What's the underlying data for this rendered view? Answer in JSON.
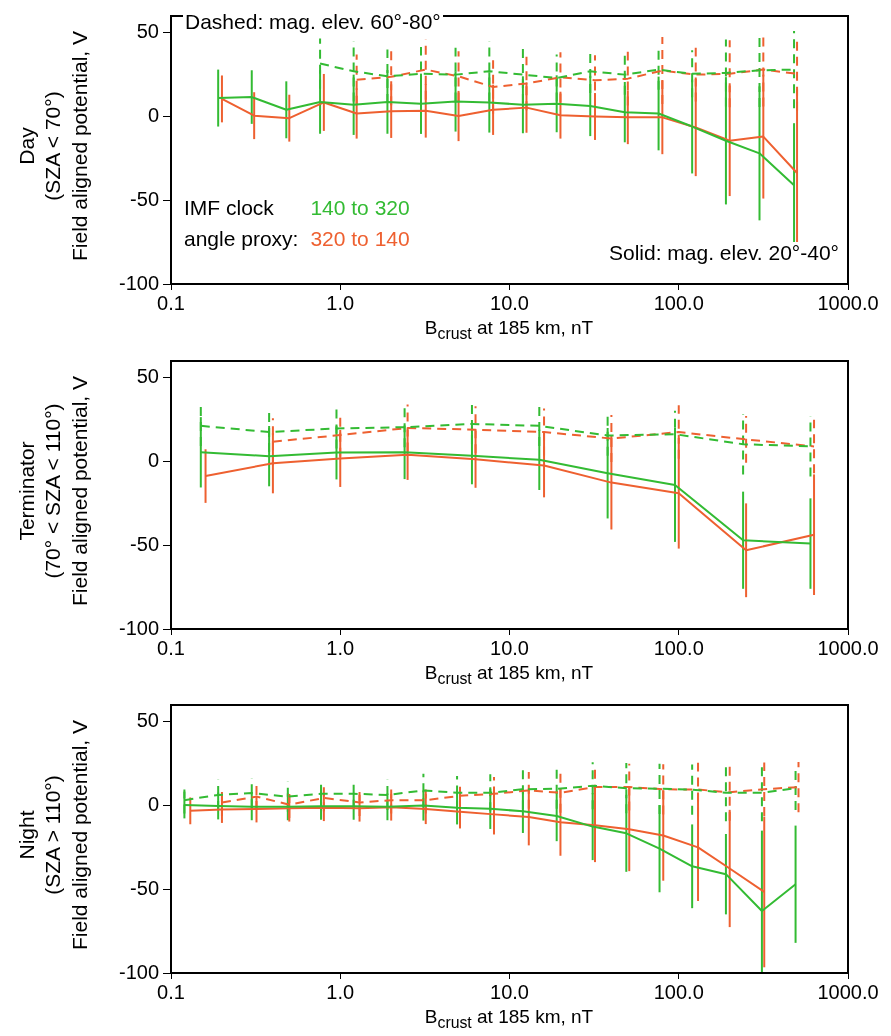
{
  "chart_data": [
    {
      "type": "line",
      "title": "Day",
      "subtitle": "(SZA < 70°)",
      "ylabel": "Field aligned potential, V",
      "xlabel": "B$_{crust}$ at 185 km, nT",
      "log": "x",
      "grid": false,
      "marker": "none",
      "legend": "bottom left",
      "legend_title": "IMF clock\nangle proxy:",
      "xlim": [
        0.1,
        1000
      ],
      "ylim": [
        -100,
        60
      ],
      "xticks": [
        {
          "value": 0.1,
          "label": "0.1"
        },
        {
          "value": 1,
          "label": "1.0"
        },
        {
          "value": 10,
          "label": "10.0"
        },
        {
          "value": 100,
          "label": "100.0"
        },
        {
          "value": 1000,
          "label": "1000.0"
        }
      ],
      "yticks": [
        -100,
        -50,
        0,
        50
      ],
      "annotations": [
        "Dashed: mag. elev. 60°-80°",
        "Solid: mag. elev. 20°-40°"
      ],
      "series": [
        {
          "name": "140 to 320",
          "color": "#33bb33",
          "line_style": "solid",
          "x": [
            0.19,
            0.3,
            0.48,
            0.76,
            1.2,
            1.9,
            3.0,
            4.8,
            7.6,
            12,
            19,
            30,
            48,
            76,
            120,
            190,
            300,
            480
          ],
          "values": [
            11,
            11.6,
            4,
            8.7,
            7,
            8.7,
            7.6,
            9,
            8.4,
            7,
            7.6,
            6.3,
            2.6,
            1.8,
            -6,
            -14.5,
            -22,
            -41
          ],
          "errors": [
            17,
            16,
            17,
            19,
            18,
            19,
            18,
            18,
            18,
            17,
            17,
            18,
            18,
            22,
            28,
            38,
            40,
            37
          ]
        },
        {
          "name": "320 to 140",
          "color": "#ee6030",
          "line_style": "solid",
          "x": [
            0.2,
            0.31,
            0.5,
            0.8,
            1.25,
            2.0,
            3.2,
            5.0,
            8.0,
            12.6,
            20,
            32,
            50,
            80,
            126,
            200,
            316,
            500
          ],
          "values": [
            10.5,
            0.5,
            -1,
            8.4,
            1.8,
            3.2,
            3.4,
            0.3,
            4,
            5.3,
            0.8,
            0,
            -0.5,
            -0.5,
            -6.6,
            -14.5,
            -12,
            -33.7
          ],
          "errors": [
            14,
            14,
            14,
            17,
            15,
            16,
            16,
            15,
            15,
            15,
            14,
            14,
            16,
            22,
            29,
            33,
            37,
            50
          ]
        },
        {
          "color": "#33bb33",
          "line_style": "dashed",
          "x": [
            0.76,
            1.2,
            1.9,
            3.0,
            4.8,
            7.6,
            12,
            19,
            30,
            48,
            76,
            120,
            190,
            300,
            480
          ],
          "values": [
            31.6,
            27,
            24,
            25.5,
            25,
            27,
            25,
            23,
            27,
            25,
            28,
            25.5,
            26,
            27.6,
            28
          ],
          "errors": [
            15,
            18,
            16,
            16,
            16,
            18,
            17,
            14,
            13,
            12,
            12,
            14,
            20,
            22,
            23
          ]
        },
        {
          "color": "#ee6030",
          "line_style": "dashed",
          "x": [
            1.25,
            2.0,
            3.2,
            5.0,
            8.0,
            12.6,
            20,
            32,
            50,
            80,
            126,
            200,
            316,
            500
          ],
          "values": [
            22,
            23.7,
            28,
            24,
            17.6,
            19.7,
            23.4,
            21.6,
            22.6,
            27.4,
            25,
            25.5,
            28,
            25.5
          ],
          "errors": [
            15,
            17,
            18,
            15,
            16,
            16,
            15,
            15,
            16,
            20,
            16,
            20,
            22,
            22
          ]
        }
      ]
    },
    {
      "type": "line",
      "title": "Terminator",
      "subtitle": "(70° < SZA < 110°)",
      "ylabel": "Field aligned potential, V",
      "xlabel": "B$_{crust}$ at 185 km, nT",
      "log": "x",
      "grid": false,
      "marker": "none",
      "xlim": [
        0.1,
        1000
      ],
      "ylim": [
        -100,
        60
      ],
      "xticks": [
        {
          "value": 0.1,
          "label": "0.1"
        },
        {
          "value": 1,
          "label": "1.0"
        },
        {
          "value": 10,
          "label": "10.0"
        },
        {
          "value": 100,
          "label": "100.0"
        },
        {
          "value": 1000,
          "label": "1000.0"
        }
      ],
      "yticks": [
        -100,
        -50,
        0,
        50
      ],
      "series": [
        {
          "color": "#33bb33",
          "line_style": "solid",
          "x": [
            0.15,
            0.38,
            0.95,
            2.4,
            6,
            15,
            38,
            95,
            240,
            600
          ],
          "values": [
            5.5,
            3.2,
            5.3,
            5.5,
            3.4,
            1,
            -7,
            -14,
            -47,
            -49
          ],
          "errors": [
            21,
            18,
            16,
            16,
            17,
            18,
            27,
            34,
            29,
            27
          ]
        },
        {
          "color": "#ee6030",
          "line_style": "solid",
          "x": [
            0.16,
            0.4,
            1.0,
            2.5,
            6.3,
            16,
            40,
            100,
            250,
            630
          ],
          "values": [
            -8.7,
            -1,
            1.8,
            4,
            1.3,
            -2.4,
            -12.6,
            -19,
            -53,
            -43.7
          ],
          "errors": [
            16,
            18,
            17,
            15,
            17,
            19,
            28,
            33,
            28,
            36
          ]
        },
        {
          "color": "#33bb33",
          "line_style": "dashed",
          "x": [
            0.15,
            0.38,
            0.95,
            2.4,
            6,
            15,
            38,
            95,
            240,
            600
          ],
          "values": [
            21.3,
            17.6,
            19.7,
            20.5,
            22.4,
            21.3,
            15.5,
            16.3,
            10.3,
            9
          ],
          "errors": [
            12,
            12,
            12,
            12,
            12,
            12,
            12,
            14,
            18,
            18
          ]
        },
        {
          "color": "#ee6030",
          "line_style": "dashed",
          "x": [
            0.4,
            1.0,
            2.5,
            6.3,
            16,
            40,
            100,
            250,
            630
          ],
          "values": [
            11.8,
            15.8,
            20,
            19,
            17.6,
            13.7,
            17.6,
            13.2,
            9
          ],
          "errors": [
            14,
            13,
            14,
            14,
            14,
            14,
            16,
            14,
            16
          ]
        }
      ]
    },
    {
      "type": "line",
      "title": "Night",
      "subtitle": "(SZA > 110°)",
      "ylabel": "Field aligned potential, V",
      "xlabel": "B$_{crust}$ at 185 km, nT",
      "log": "x",
      "grid": false,
      "marker": "none",
      "xlim": [
        0.1,
        1000
      ],
      "ylim": [
        -100,
        60
      ],
      "xticks": [
        {
          "value": 0.1,
          "label": "0.1"
        },
        {
          "value": 1,
          "label": "1.0"
        },
        {
          "value": 10,
          "label": "10.0"
        },
        {
          "value": 100,
          "label": "100.0"
        },
        {
          "value": 1000,
          "label": "1000.0"
        }
      ],
      "yticks": [
        -100,
        -50,
        0,
        50
      ],
      "series": [
        {
          "color": "#33bb33",
          "line_style": "solid",
          "x": [
            0.12,
            0.19,
            0.3,
            0.49,
            0.77,
            1.2,
            1.9,
            3.1,
            4.9,
            7.7,
            12,
            19,
            31,
            49,
            77,
            120,
            190,
            310,
            490
          ],
          "values": [
            0.3,
            -0.3,
            -0.8,
            -0.8,
            -0.5,
            -0.5,
            -0.8,
            0,
            -1.3,
            -2,
            -3.4,
            -6.3,
            -12.6,
            -16.6,
            -25.8,
            -36.3,
            -41,
            -63,
            -47
          ],
          "errors": [
            8,
            8,
            8,
            8,
            8,
            8,
            8,
            9,
            10,
            12,
            13,
            15,
            20,
            23,
            26,
            25,
            24,
            48,
            35
          ]
        },
        {
          "color": "#ee6030",
          "line_style": "solid",
          "x": [
            0.13,
            0.2,
            0.32,
            0.5,
            0.8,
            1.3,
            2.0,
            3.2,
            5.1,
            8.1,
            13,
            20,
            32,
            51,
            81,
            130,
            200,
            320
          ],
          "values": [
            -3.2,
            -2.4,
            -2.1,
            -1.6,
            -1.3,
            -1.6,
            -1,
            -2.1,
            -3.7,
            -5.3,
            -6.8,
            -10,
            -11.8,
            -14.2,
            -17.9,
            -25,
            -37.6,
            -51.6
          ],
          "errors": [
            8,
            8,
            8,
            8,
            8,
            8,
            8,
            9,
            10,
            12,
            17,
            20,
            22,
            25,
            27,
            32,
            35,
            45
          ]
        },
        {
          "color": "#33bb33",
          "line_style": "dashed",
          "x": [
            0.12,
            0.19,
            0.3,
            0.49,
            0.77,
            1.2,
            1.9,
            3.1,
            4.9,
            7.7,
            12,
            19,
            31,
            49,
            77,
            120,
            190,
            310,
            490
          ],
          "values": [
            3.2,
            6.3,
            7.4,
            5.3,
            7,
            7,
            6.3,
            9,
            7.6,
            7.6,
            9.7,
            10,
            11.8,
            10.3,
            10,
            9.5,
            7.6,
            7.6,
            10.3
          ],
          "errors": [
            8,
            9,
            9,
            9,
            9,
            9,
            9,
            10,
            10,
            11,
            12,
            12,
            14,
            15,
            15,
            15,
            17,
            17,
            13
          ]
        },
        {
          "color": "#ee6030",
          "line_style": "dashed",
          "x": [
            0.2,
            0.32,
            0.5,
            0.8,
            1.3,
            2.0,
            3.2,
            5.1,
            8.1,
            13,
            20,
            32,
            51,
            81,
            130,
            200,
            320,
            510
          ],
          "values": [
            1.8,
            5.3,
            0.5,
            4.5,
            1.8,
            3.2,
            3.2,
            5.8,
            7,
            9,
            7.6,
            11,
            11,
            9.7,
            9.5,
            7.9,
            9.7,
            11
          ],
          "errors": [
            8,
            8,
            8,
            8,
            8,
            8,
            8,
            9,
            10,
            11,
            12,
            13,
            14,
            15,
            16,
            17,
            16,
            15
          ]
        }
      ]
    }
  ]
}
